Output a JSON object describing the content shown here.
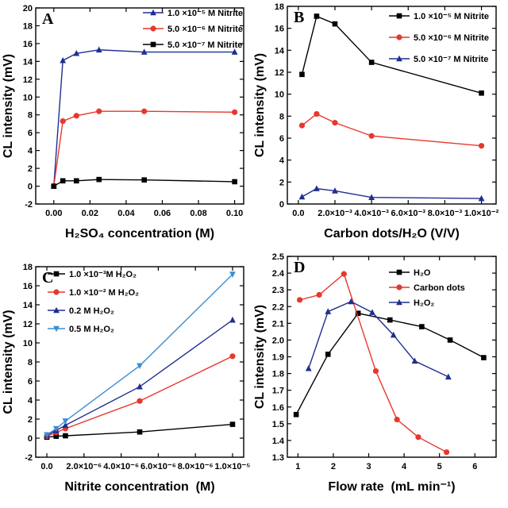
{
  "chart_data": [
    {
      "type": "line",
      "panel_label": "A",
      "xlabel": "H₂SO₄ concentration (M)",
      "ylabel": "CL intensity (mV)",
      "xlim": [
        -0.01,
        0.105
      ],
      "ylim": [
        -2,
        20
      ],
      "xticks": [
        0.0,
        0.02,
        0.04,
        0.06,
        0.08,
        0.1
      ],
      "xtick_labels": [
        "0.00",
        "0.02",
        "0.04",
        "0.06",
        "0.08",
        "0.10"
      ],
      "yticks": [
        -2,
        0,
        2,
        4,
        6,
        8,
        10,
        12,
        14,
        16,
        18,
        20
      ],
      "ytick_labels": [
        "-2",
        "0",
        "2",
        "4",
        "6",
        "8",
        "10",
        "12",
        "14",
        "16",
        "18",
        "20"
      ],
      "legend_position": "top-right",
      "series": [
        {
          "name": "1.0 ×10⁻⁵ M Nitrite",
          "color": "#1f2f8f",
          "marker": "triangle",
          "x": [
            0,
            0.005,
            0.0125,
            0.025,
            0.05,
            0.1
          ],
          "y": [
            0,
            14.1,
            14.9,
            15.3,
            15.05,
            15.05
          ]
        },
        {
          "name": "5.0 ×10⁻⁶ M Nitrite",
          "color": "#e8372c",
          "marker": "circle",
          "x": [
            0,
            0.005,
            0.0125,
            0.025,
            0.05,
            0.1
          ],
          "y": [
            0,
            7.3,
            7.9,
            8.4,
            8.4,
            8.3
          ]
        },
        {
          "name": "5.0 ×10⁻⁷ M Nitrite",
          "color": "#000000",
          "marker": "square",
          "x": [
            0,
            0.005,
            0.0125,
            0.025,
            0.05,
            0.1
          ],
          "y": [
            0,
            0.6,
            0.6,
            0.75,
            0.7,
            0.5
          ]
        }
      ]
    },
    {
      "type": "line",
      "panel_label": "B",
      "xlabel": "Carbon dots/H₂O (V/V)",
      "ylabel": "CL intensity (mV)",
      "xlim": [
        -0.0006,
        0.0108
      ],
      "ylim": [
        0,
        18
      ],
      "xticks": [
        0,
        0.002,
        0.004,
        0.006,
        0.008,
        0.01
      ],
      "xtick_labels": [
        "0.0",
        "2.0×10⁻³",
        "4.0×10⁻³",
        "6.0×10⁻³",
        "8.0×10⁻³",
        "1.0×10⁻²"
      ],
      "yticks": [
        0,
        2,
        4,
        6,
        8,
        10,
        12,
        14,
        16,
        18
      ],
      "ytick_labels": [
        "0",
        "2",
        "4",
        "6",
        "8",
        "10",
        "12",
        "14",
        "16",
        "18"
      ],
      "legend_position": "top-right",
      "series": [
        {
          "name": "1.0 ×10⁻⁵ M Nitrite",
          "color": "#000000",
          "marker": "square",
          "x": [
            0.0002,
            0.001,
            0.002,
            0.004,
            0.01
          ],
          "y": [
            11.8,
            17.1,
            16.4,
            12.9,
            10.1
          ]
        },
        {
          "name": "5.0 ×10⁻⁶ M Nitrite",
          "color": "#e8372c",
          "marker": "circle",
          "x": [
            0.0002,
            0.001,
            0.002,
            0.004,
            0.01
          ],
          "y": [
            7.15,
            8.2,
            7.4,
            6.2,
            5.3
          ]
        },
        {
          "name": "5.0 ×10⁻⁷ M Nitrite",
          "color": "#1f2f8f",
          "marker": "triangle",
          "x": [
            0.0002,
            0.001,
            0.002,
            0.004,
            0.01
          ],
          "y": [
            0.65,
            1.4,
            1.2,
            0.6,
            0.5
          ]
        }
      ]
    },
    {
      "type": "line",
      "panel_label": "C",
      "xlabel": "Nitrite concentration  (M)",
      "ylabel": "CL intensity (mV)",
      "xlim": [
        -6e-07,
        1.06e-05
      ],
      "ylim": [
        -2,
        18
      ],
      "xticks": [
        0,
        2e-06,
        4e-06,
        6e-06,
        8e-06,
        1e-05
      ],
      "xtick_labels": [
        "0.0",
        "2.0×10⁻⁶",
        "4.0×10⁻⁶",
        "6.0×10⁻⁶",
        "8.0×10⁻⁶",
        "1.0×10⁻⁵"
      ],
      "yticks": [
        -2,
        0,
        2,
        4,
        6,
        8,
        10,
        12,
        14,
        16,
        18
      ],
      "ytick_labels": [
        "-2",
        "0",
        "2",
        "4",
        "6",
        "8",
        "10",
        "12",
        "14",
        "16",
        "18"
      ],
      "legend_position": "top-left",
      "series": [
        {
          "name": "1.0 ×10⁻³M H₂O₂",
          "color": "#000000",
          "marker": "square",
          "x": [
            0,
            5e-07,
            1e-06,
            5e-06,
            1e-05
          ],
          "y": [
            0.1,
            0.2,
            0.25,
            0.65,
            1.45
          ]
        },
        {
          "name": "1.0 ×10⁻² M H₂O₂",
          "color": "#e8372c",
          "marker": "circle",
          "x": [
            0,
            5e-07,
            1e-06,
            5e-06,
            1e-05
          ],
          "y": [
            0.2,
            0.6,
            1.0,
            3.9,
            8.6
          ]
        },
        {
          "name": "0.2 M H₂O₂",
          "color": "#1f2f8f",
          "marker": "triangle",
          "x": [
            0,
            5e-07,
            1e-06,
            5e-06,
            1e-05
          ],
          "y": [
            0.3,
            0.8,
            1.35,
            5.4,
            12.4
          ]
        },
        {
          "name": "0.5 M H₂O₂",
          "color": "#3a8fd6",
          "marker": "triangle-down",
          "x": [
            0,
            5e-07,
            1e-06,
            5e-06,
            1e-05
          ],
          "y": [
            0.35,
            1.0,
            1.8,
            7.6,
            17.2
          ]
        }
      ]
    },
    {
      "type": "line",
      "panel_label": "D",
      "xlabel": "Flow rate  (mL min⁻¹)",
      "ylabel": "CL intensity (mV)",
      "xlim": [
        0.7,
        6.6
      ],
      "ylim": [
        1.3,
        2.5
      ],
      "xticks": [
        1,
        2,
        3,
        4,
        5,
        6
      ],
      "xtick_labels": [
        "1",
        "2",
        "3",
        "4",
        "5",
        "6"
      ],
      "yticks": [
        1.3,
        1.4,
        1.5,
        1.6,
        1.7,
        1.8,
        1.9,
        2.0,
        2.1,
        2.2,
        2.3,
        2.4,
        2.5
      ],
      "ytick_labels": [
        "1.3",
        "1.4",
        "1.5",
        "1.6",
        "1.7",
        "1.8",
        "1.9",
        "2.0",
        "2.1",
        "2.2",
        "2.3",
        "2.4",
        "2.5"
      ],
      "legend_position": "top-right",
      "series": [
        {
          "name": "H₂O",
          "color": "#000000",
          "marker": "square",
          "x": [
            0.95,
            1.85,
            2.7,
            3.6,
            4.5,
            5.3,
            6.25
          ],
          "y": [
            1.555,
            1.915,
            2.16,
            2.12,
            2.08,
            2.0,
            1.895
          ]
        },
        {
          "name": "Carbon dots",
          "color": "#e8372c",
          "marker": "circle",
          "x": [
            1.05,
            1.6,
            2.3,
            3.2,
            3.8,
            4.4,
            5.2
          ],
          "y": [
            2.24,
            2.27,
            2.395,
            1.815,
            1.525,
            1.42,
            1.33
          ]
        },
        {
          "name": "H₂O₂",
          "color": "#1f2f8f",
          "marker": "triangle",
          "x": [
            1.3,
            1.85,
            2.5,
            3.1,
            3.7,
            4.3,
            5.25
          ],
          "y": [
            1.83,
            2.17,
            2.23,
            2.165,
            2.03,
            1.875,
            1.78
          ]
        }
      ]
    }
  ]
}
